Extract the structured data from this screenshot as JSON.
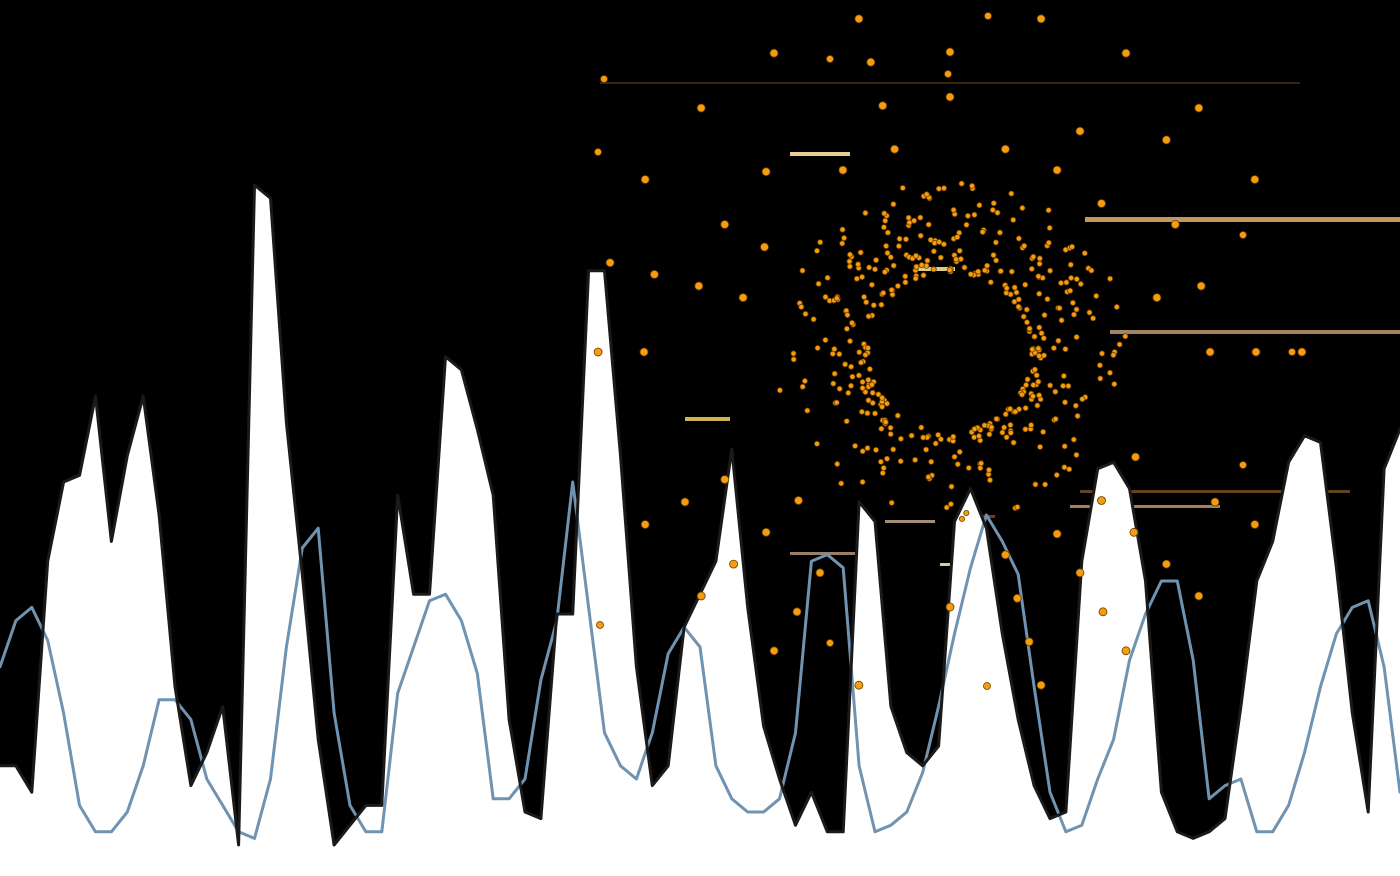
{
  "chart_data": {
    "type": "area",
    "title": "",
    "xlabel": "",
    "ylabel": "",
    "grid": false,
    "legend": "none",
    "x_range": [
      0,
      88
    ],
    "y_range": [
      0,
      1
    ],
    "colors": {
      "background": "#000000",
      "area_fill": "#ffffff",
      "dark_line": "#1a1a1a",
      "blue_line": "#6f93b0",
      "dots": "#f59e0b"
    },
    "series": [
      {
        "values": [
          0.12,
          0.12,
          0.08,
          0.43,
          0.55,
          0.56,
          0.68,
          0.46,
          0.59,
          0.68,
          0.5,
          0.24,
          0.09,
          0.14,
          0.21,
          0.0,
          1.0,
          0.98,
          0.64,
          0.41,
          0.16,
          0.0,
          0.03,
          0.06,
          0.06,
          0.53,
          0.38,
          0.38,
          0.74,
          0.72,
          0.63,
          0.53,
          0.19,
          0.05,
          0.04,
          0.35,
          0.35,
          0.87,
          0.87,
          0.59,
          0.27,
          0.09,
          0.12,
          0.33,
          0.38,
          0.43,
          0.6,
          0.36,
          0.18,
          0.1,
          0.03,
          0.08,
          0.02,
          0.02,
          0.52,
          0.49,
          0.21,
          0.14,
          0.12,
          0.15,
          0.49,
          0.54,
          0.48,
          0.32,
          0.19,
          0.09,
          0.04,
          0.05,
          0.43,
          0.57,
          0.58,
          0.54,
          0.4,
          0.08,
          0.02,
          0.01,
          0.02,
          0.04,
          0.21,
          0.4,
          0.46,
          0.58,
          0.62,
          0.61,
          0.42,
          0.2,
          0.05,
          0.57,
          0.63
        ]
      },
      {
        "values": [
          0.27,
          0.34,
          0.36,
          0.31,
          0.2,
          0.06,
          0.02,
          0.02,
          0.05,
          0.12,
          0.22,
          0.22,
          0.19,
          0.1,
          0.06,
          0.02,
          0.01,
          0.1,
          0.3,
          0.45,
          0.48,
          0.2,
          0.06,
          0.02,
          0.02,
          0.23,
          0.3,
          0.37,
          0.38,
          0.34,
          0.26,
          0.07,
          0.07,
          0.1,
          0.25,
          0.34,
          0.55,
          0.36,
          0.17,
          0.12,
          0.1,
          0.17,
          0.29,
          0.33,
          0.3,
          0.12,
          0.07,
          0.05,
          0.05,
          0.07,
          0.17,
          0.43,
          0.44,
          0.42,
          0.12,
          0.02,
          0.03,
          0.05,
          0.11,
          0.21,
          0.32,
          0.42,
          0.5,
          0.46,
          0.41,
          0.24,
          0.08,
          0.02,
          0.03,
          0.1,
          0.16,
          0.28,
          0.35,
          0.4,
          0.4,
          0.28,
          0.07,
          0.09,
          0.1,
          0.02,
          0.02,
          0.06,
          0.14,
          0.24,
          0.32,
          0.36,
          0.37,
          0.27,
          0.08
        ]
      }
    ]
  }
}
